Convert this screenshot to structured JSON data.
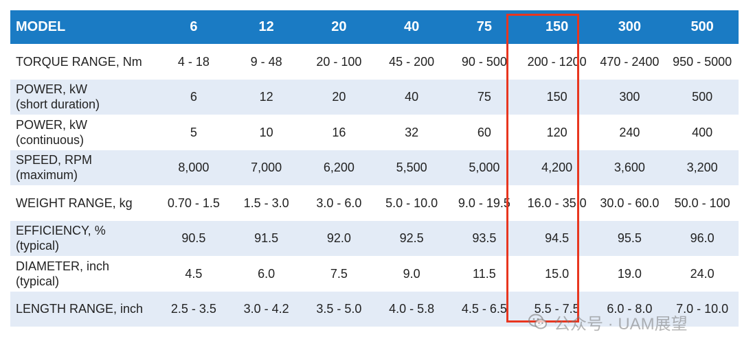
{
  "table": {
    "header": [
      "MODEL",
      "6",
      "12",
      "20",
      "40",
      "75",
      "150",
      "300",
      "500"
    ],
    "rows": [
      {
        "label": [
          "TORQUE RANGE, Nm"
        ],
        "values": [
          "4 - 18",
          "9 - 48",
          "20 - 100",
          "45 - 200",
          "90 - 500",
          "200 - 1200",
          "470 - 2400",
          "950 - 5000"
        ]
      },
      {
        "label": [
          "POWER, kW",
          "(short duration)"
        ],
        "values": [
          "6",
          "12",
          "20",
          "40",
          "75",
          "150",
          "300",
          "500"
        ]
      },
      {
        "label": [
          "POWER, kW",
          "(continuous)"
        ],
        "values": [
          "5",
          "10",
          "16",
          "32",
          "60",
          "120",
          "240",
          "400"
        ]
      },
      {
        "label": [
          "SPEED, RPM",
          "(maximum)"
        ],
        "values": [
          "8,000",
          "7,000",
          "6,200",
          "5,500",
          "5,000",
          "4,200",
          "3,600",
          "3,200"
        ]
      },
      {
        "label": [
          "WEIGHT RANGE, kg"
        ],
        "values": [
          "0.70 - 1.5",
          "1.5 - 3.0",
          "3.0 - 6.0",
          "5.0 - 10.0",
          "9.0 - 19.5",
          "16.0 - 35.0",
          "30.0 - 60.0",
          "50.0 - 100"
        ]
      },
      {
        "label": [
          "EFFICIENCY, %",
          "(typical)"
        ],
        "values": [
          "90.5",
          "91.5",
          "92.0",
          "92.5",
          "93.5",
          "94.5",
          "95.5",
          "96.0"
        ]
      },
      {
        "label": [
          "DIAMETER, inch",
          "(typical)"
        ],
        "values": [
          "4.5",
          "6.0",
          "7.5",
          "9.0",
          "11.5",
          "15.0",
          "19.0",
          "24.0"
        ]
      },
      {
        "label": [
          "LENGTH RANGE, inch"
        ],
        "values": [
          "2.5 - 3.5",
          "3.0 - 4.2",
          "3.5 - 5.0",
          "4.0 - 5.8",
          "4.5 - 6.5",
          "5.5 - 7.5",
          "6.0 - 8.0",
          "7.0 - 10.0"
        ]
      }
    ],
    "highlighted_model": "150"
  },
  "watermark": {
    "text": "公众号 · UAM展望",
    "icon": "wechat-icon"
  },
  "colors": {
    "header_bg": "#1a7bc4",
    "stripe_bg": "#e3ebf6",
    "highlight_border": "#e8361f"
  }
}
